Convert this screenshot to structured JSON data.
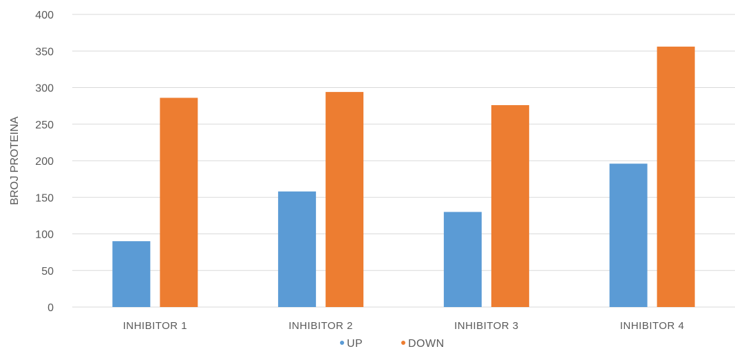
{
  "chart_data": {
    "type": "bar",
    "title": "",
    "xlabel": "",
    "ylabel": "BROJ PROTEINA",
    "ylim": [
      0,
      400
    ],
    "yticks": [
      0,
      50,
      100,
      150,
      200,
      250,
      300,
      350,
      400
    ],
    "grid": true,
    "legend_position": "bottom",
    "categories": [
      "INHIBITOR 1",
      "INHIBITOR 2",
      "INHIBITOR 3",
      "INHIBITOR 4"
    ],
    "series": [
      {
        "name": "UP",
        "values": [
          90,
          158,
          130,
          196
        ],
        "color": "#5b9bd5"
      },
      {
        "name": "DOWN",
        "values": [
          286,
          294,
          276,
          356
        ],
        "color": "#ed7d31"
      }
    ]
  }
}
